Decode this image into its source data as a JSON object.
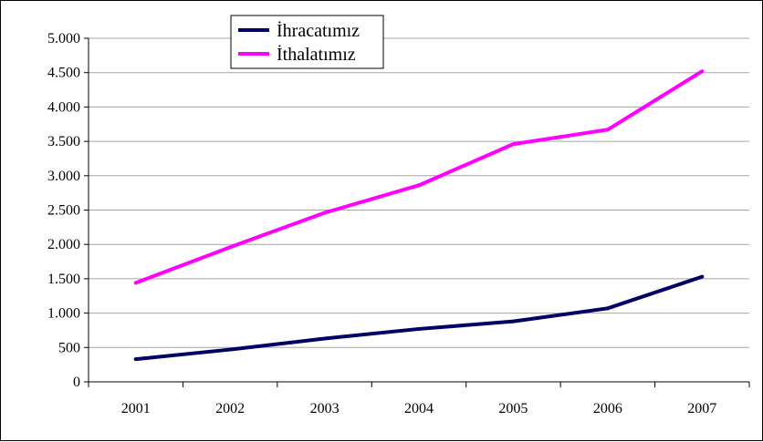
{
  "chart_data": {
    "type": "line",
    "title": "",
    "xlabel": "",
    "ylabel": "",
    "categories": [
      "2001",
      "2002",
      "2003",
      "2004",
      "2005",
      "2006",
      "2007"
    ],
    "series": [
      {
        "name": "İhracatımız",
        "color": "#000066",
        "values": [
          330,
          470,
          630,
          770,
          880,
          1070,
          1530
        ]
      },
      {
        "name": "İthalatımız",
        "color": "#ff00ff",
        "values": [
          1440,
          1960,
          2460,
          2860,
          3460,
          3670,
          4520
        ]
      }
    ],
    "ylim": [
      0,
      5000
    ],
    "y_ticks": [
      0,
      500,
      1000,
      1500,
      2000,
      2500,
      3000,
      3500,
      4000,
      4500,
      5000
    ],
    "y_tick_labels": [
      "0",
      "500",
      "1.000",
      "1.500",
      "2.000",
      "2.500",
      "3.000",
      "3.500",
      "4.000",
      "4.500",
      "5.000"
    ],
    "grid": true,
    "legend_position": "top-center"
  }
}
